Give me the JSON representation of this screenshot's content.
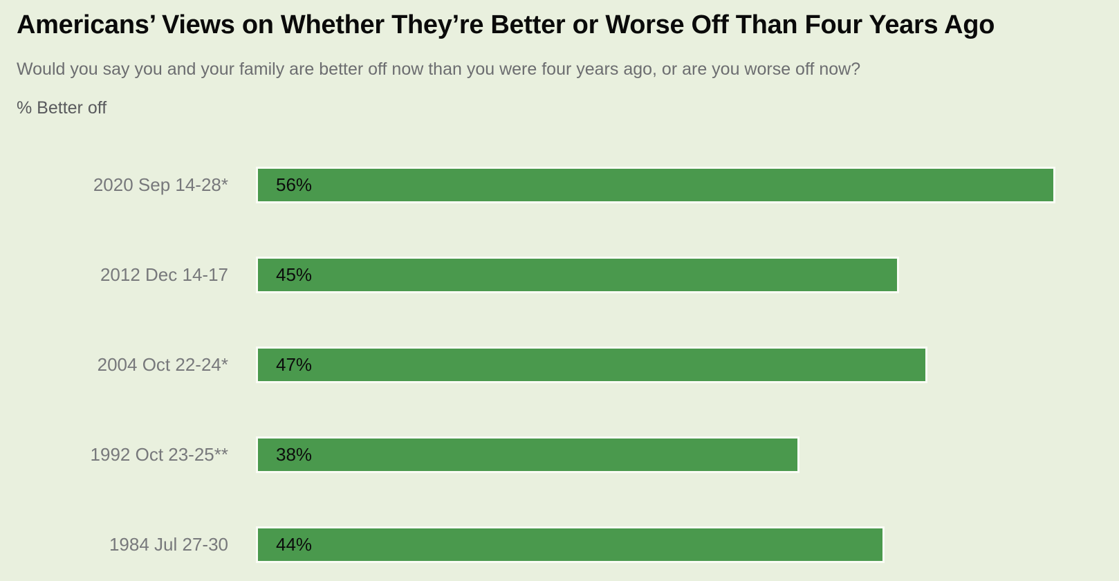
{
  "chart_data": {
    "type": "bar",
    "orientation": "horizontal",
    "title": "Americans’ Views on Whether They’re Better or Worse Off Than Four Years Ago",
    "subtitle": "Would you say you and your family are better off now than you were four years ago, or are you worse off now?",
    "axis_label": "% Better off",
    "categories": [
      "2020 Sep 14-28*",
      "2012 Dec 14-17",
      "2004 Oct 22-24*",
      "1992 Oct 23-25**",
      "1984 Jul 27-30"
    ],
    "values": [
      56,
      45,
      47,
      38,
      44
    ],
    "value_labels": [
      "56%",
      "45%",
      "47%",
      "38%",
      "44%"
    ],
    "xlim": [
      0,
      60
    ],
    "grid": false,
    "legend": false,
    "value_label_position": "inside-start"
  },
  "colors": {
    "background": "#e9f0de",
    "bar_fill": "#4a994d",
    "bar_border": "#fafcf5",
    "title_text": "#0a0a0a",
    "subtitle_text": "#6c6d70",
    "axis_label_text": "#595a5d",
    "category_text": "#77787b",
    "value_text": "#0c0c0c"
  }
}
